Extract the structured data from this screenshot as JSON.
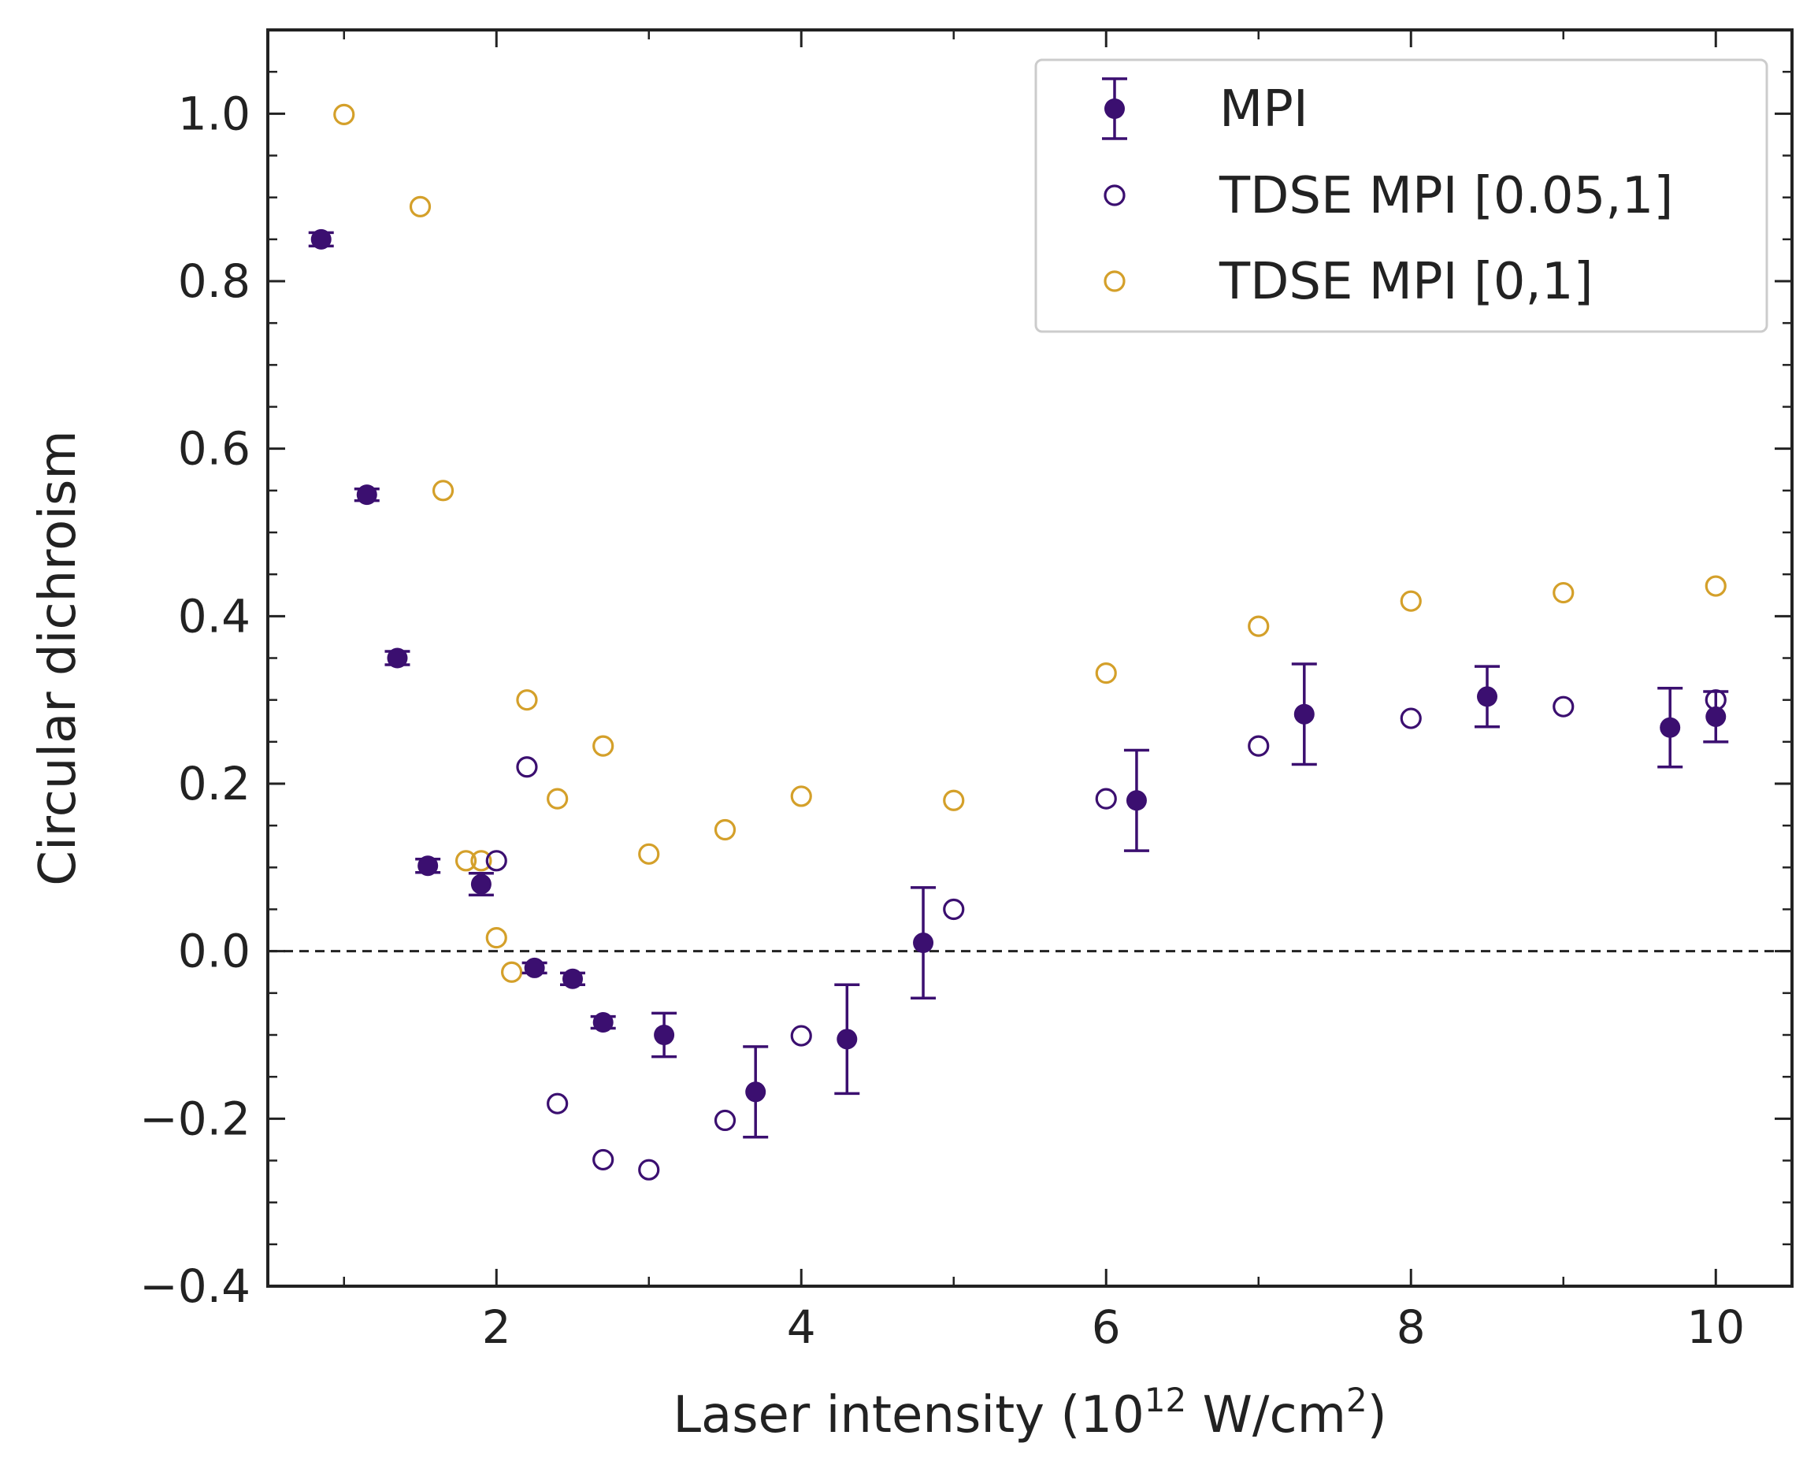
{
  "chart_data": {
    "type": "scatter",
    "xlabel": {
      "prefix": "Laser intensity (10",
      "exp1": "12",
      "mid": " W/cm",
      "exp2": "2",
      "suffix": ")"
    },
    "ylabel": "Circular dichroism",
    "xlim": [
      0.5,
      10.5
    ],
    "ylim": [
      -0.4,
      1.1
    ],
    "xticks": [
      2,
      4,
      6,
      8,
      10
    ],
    "xtick_labels": [
      "2",
      "4",
      "6",
      "8",
      "10"
    ],
    "xminor": [
      1,
      3,
      5,
      7,
      9
    ],
    "yticks": [
      -0.4,
      -0.2,
      0.0,
      0.2,
      0.4,
      0.6,
      0.8,
      1.0
    ],
    "ytick_labels": [
      "−0.4",
      "−0.2",
      "0.0",
      "0.2",
      "0.4",
      "0.6",
      "0.8",
      "1.0"
    ],
    "yminor": [
      -0.35,
      -0.3,
      -0.25,
      -0.15,
      -0.1,
      -0.05,
      0.05,
      0.1,
      0.15,
      0.25,
      0.3,
      0.35,
      0.45,
      0.5,
      0.55,
      0.65,
      0.7,
      0.75,
      0.85,
      0.9,
      0.95,
      1.05
    ],
    "reference_line": {
      "y": 0.0,
      "style": "dashed"
    },
    "legend": {
      "position": "top-right",
      "entries": [
        "MPI",
        "TDSE MPI [0.05,1]",
        "TDSE MPI [0,1]"
      ]
    },
    "colors": {
      "mpi": "#3b0f70",
      "tdse_005": "#3b0f70",
      "tdse_0": "#d4a02a",
      "axes": "#222222",
      "frame": "#cccccc"
    },
    "series": [
      {
        "name": "MPI",
        "marker": "filled-circle",
        "points": [
          {
            "x": 0.85,
            "y": 0.85,
            "err": 0.008
          },
          {
            "x": 1.15,
            "y": 0.545,
            "err": 0.007
          },
          {
            "x": 1.35,
            "y": 0.35,
            "err": 0.008
          },
          {
            "x": 1.55,
            "y": 0.102,
            "err": 0.008
          },
          {
            "x": 1.9,
            "y": 0.08,
            "err": 0.013
          },
          {
            "x": 2.25,
            "y": -0.02,
            "err": 0.006
          },
          {
            "x": 2.5,
            "y": -0.033,
            "err": 0.007
          },
          {
            "x": 2.7,
            "y": -0.085,
            "err": 0.007
          },
          {
            "x": 3.1,
            "y": -0.1,
            "err": 0.026
          },
          {
            "x": 3.7,
            "y": -0.168,
            "err": 0.054
          },
          {
            "x": 4.3,
            "y": -0.105,
            "err": 0.065
          },
          {
            "x": 4.8,
            "y": 0.01,
            "err": 0.066
          },
          {
            "x": 6.2,
            "y": 0.18,
            "err": 0.06
          },
          {
            "x": 7.3,
            "y": 0.283,
            "err": 0.06
          },
          {
            "x": 8.5,
            "y": 0.304,
            "err": 0.036
          },
          {
            "x": 9.7,
            "y": 0.267,
            "err": 0.047
          },
          {
            "x": 10.0,
            "y": 0.28,
            "err": 0.03
          }
        ]
      },
      {
        "name": "TDSE MPI [0.05,1]",
        "marker": "open-circle",
        "points": [
          {
            "x": 2.0,
            "y": 0.108
          },
          {
            "x": 2.2,
            "y": 0.22
          },
          {
            "x": 2.4,
            "y": -0.182
          },
          {
            "x": 2.7,
            "y": -0.249
          },
          {
            "x": 3.0,
            "y": -0.261
          },
          {
            "x": 3.5,
            "y": -0.202
          },
          {
            "x": 4.0,
            "y": -0.101
          },
          {
            "x": 5.0,
            "y": 0.05
          },
          {
            "x": 6.0,
            "y": 0.182
          },
          {
            "x": 7.0,
            "y": 0.245
          },
          {
            "x": 8.0,
            "y": 0.278
          },
          {
            "x": 9.0,
            "y": 0.292
          },
          {
            "x": 10.0,
            "y": 0.3
          }
        ]
      },
      {
        "name": "TDSE MPI [0,1]",
        "marker": "open-circle",
        "points": [
          {
            "x": 1.0,
            "y": 0.999
          },
          {
            "x": 1.5,
            "y": 0.889
          },
          {
            "x": 1.65,
            "y": 0.55
          },
          {
            "x": 1.8,
            "y": 0.108
          },
          {
            "x": 1.9,
            "y": 0.108
          },
          {
            "x": 2.0,
            "y": 0.016
          },
          {
            "x": 2.1,
            "y": -0.025
          },
          {
            "x": 2.2,
            "y": 0.3
          },
          {
            "x": 2.4,
            "y": 0.182
          },
          {
            "x": 2.7,
            "y": 0.245
          },
          {
            "x": 3.0,
            "y": 0.116
          },
          {
            "x": 3.5,
            "y": 0.145
          },
          {
            "x": 4.0,
            "y": 0.185
          },
          {
            "x": 5.0,
            "y": 0.18
          },
          {
            "x": 6.0,
            "y": 0.332
          },
          {
            "x": 7.0,
            "y": 0.388
          },
          {
            "x": 8.0,
            "y": 0.418
          },
          {
            "x": 9.0,
            "y": 0.428
          },
          {
            "x": 10.0,
            "y": 0.436
          }
        ]
      }
    ]
  }
}
